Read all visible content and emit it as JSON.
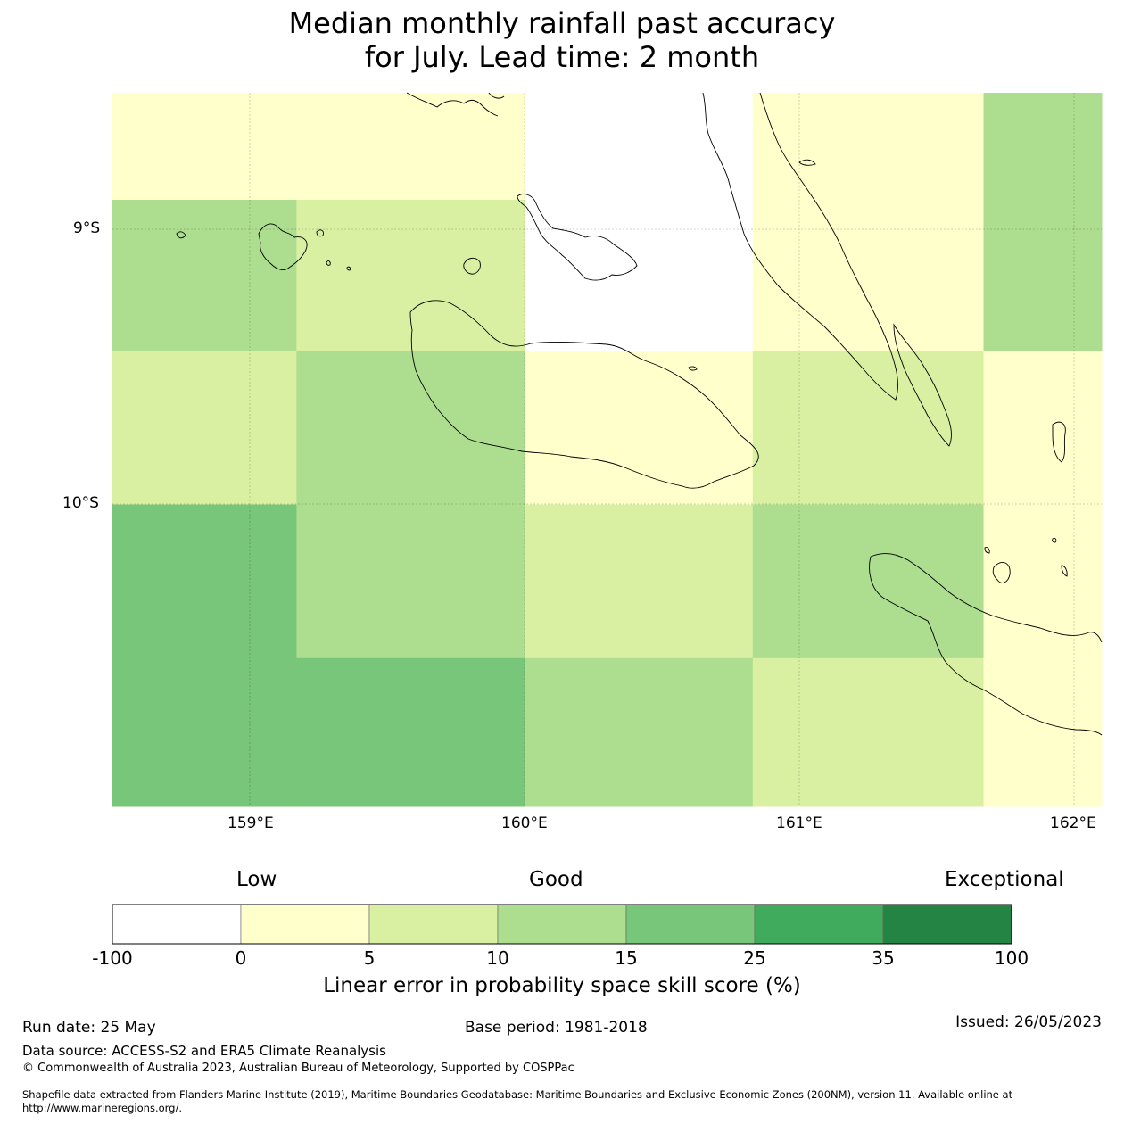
{
  "title": {
    "line1": "Median monthly rainfall past accuracy",
    "line2": "for July. Lead time: 2 month"
  },
  "map": {
    "x_ticks": [
      "159°E",
      "160°E",
      "161°E",
      "162°E"
    ],
    "y_ticks": [
      "9°S",
      "10°S"
    ],
    "lon_range": [
      158.5,
      162.1
    ],
    "lat_range": [
      -8.5,
      -11.1
    ],
    "grid_lon_edges": [
      158.5,
      159.17,
      160.0,
      160.83,
      161.67,
      162.1
    ],
    "grid_lat_edges": [
      -8.5,
      -8.89,
      -9.44,
      -10.0,
      -10.56,
      -11.1
    ],
    "cells": [
      [
        1,
        1,
        0,
        1,
        3
      ],
      [
        3,
        2,
        0,
        1,
        3
      ],
      [
        2,
        3,
        1,
        2,
        1
      ],
      [
        4,
        3,
        2,
        3,
        1
      ],
      [
        4,
        4,
        3,
        2,
        1
      ]
    ]
  },
  "colorbar": {
    "words": [
      "Low",
      "Good",
      "Exceptional"
    ],
    "ticks": [
      "-100",
      "0",
      "5",
      "10",
      "15",
      "25",
      "35",
      "100"
    ],
    "colors": [
      "#ffffff",
      "#ffffcc",
      "#d9f0a3",
      "#addd8e",
      "#78c679",
      "#41ab5d",
      "#238443"
    ],
    "label": "Linear error in probability space skill score (%)"
  },
  "footer": {
    "run_date": "Run date: 25 May",
    "base_period": "Base period: 1981-2018",
    "issued": "Issued: 26/05/2023",
    "data_source": "Data source: ACCESS-S2 and ERA5 Climate Reanalysis",
    "copyright": "© Commonwealth of Australia 2023, Australian Bureau of Meteorology, Supported by COSPPac",
    "shapefile": "Shapefile data extracted from Flanders Marine Institute (2019), Maritime Boundaries Geodatabase: Maritime Boundaries and Exclusive Economic Zones (200NM), version 11. Available online at http://www.marineregions.org/."
  }
}
